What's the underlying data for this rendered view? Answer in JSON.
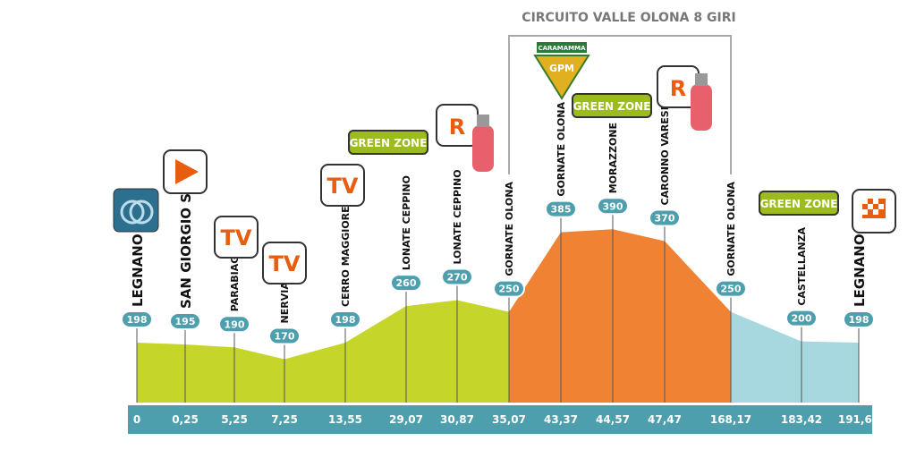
{
  "circuit_title": "CIRCUITO VALLE OLONA 8 GIRI",
  "points": [
    {
      "name": "LEGNANO",
      "altitude": 198,
      "km": "0"
    },
    {
      "name": "SAN GIORGIO S/L",
      "altitude": 195,
      "km": "0,25"
    },
    {
      "name": "PARABIAGO",
      "altitude": 190,
      "km": "5,25"
    },
    {
      "name": "NERVIANO",
      "altitude": 170,
      "km": "7,25"
    },
    {
      "name": "CERRO MAGGIORE",
      "altitude": 198,
      "km": "13,55"
    },
    {
      "name": "LONATE CEPPINO",
      "altitude": 260,
      "km": "29,07"
    },
    {
      "name": "LONATE CEPPINO",
      "altitude": 270,
      "km": "30,87"
    },
    {
      "name": "GORNATE OLONA",
      "altitude": 250,
      "km": "35,07"
    },
    {
      "name": "GORNATE OLONA",
      "altitude": 385,
      "km": "43,37"
    },
    {
      "name": "MORAZZONE",
      "altitude": 390,
      "km": "44,57"
    },
    {
      "name": "CARONNO VARESINO",
      "altitude": 370,
      "km": "47,47"
    },
    {
      "name": "GORNATE OLONA",
      "altitude": 250,
      "km": "168,17"
    },
    {
      "name": "CASTELLANZA",
      "altitude": 200,
      "km": "183,42"
    },
    {
      "name": "LEGNANO",
      "altitude": 198,
      "km": "191,60"
    }
  ],
  "icons": {
    "tv": "TV",
    "green_zone": "GREEN ZONE",
    "refuel": "R",
    "gpm_sponsor": "CARAMAMMA",
    "gpm": "GPM"
  }
}
